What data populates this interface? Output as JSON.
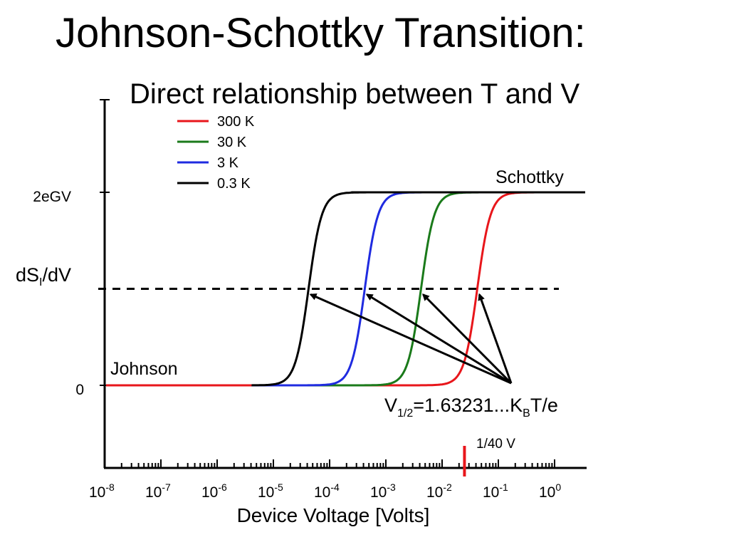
{
  "slide": {
    "title": "Johnson-Schottky Transition:",
    "subtitle": "Direct relationship between T and V"
  },
  "chart_data": {
    "type": "line",
    "xlabel": "Device Voltage [Volts]",
    "ylabel_main": "dS",
    "ylabel_sub": "I",
    "ylabel_tail": "/dV",
    "xscale": "log",
    "xlim": [
      1e-08,
      1.5
    ],
    "x_ticks": [
      {
        "base": "10",
        "exp": "-8",
        "value": 1e-08
      },
      {
        "base": "10",
        "exp": "-7",
        "value": 1e-07
      },
      {
        "base": "10",
        "exp": "-6",
        "value": 1e-06
      },
      {
        "base": "10",
        "exp": "-5",
        "value": 1e-05
      },
      {
        "base": "10",
        "exp": "-4",
        "value": 0.0001
      },
      {
        "base": "10",
        "exp": "-3",
        "value": 0.001
      },
      {
        "base": "10",
        "exp": "-2",
        "value": 0.01
      },
      {
        "base": "10",
        "exp": "-1",
        "value": 0.1
      },
      {
        "base": "10",
        "exp": "0",
        "value": 1
      }
    ],
    "y_ticks": [
      {
        "label": "2eGV",
        "value": 1
      },
      {
        "label": "0",
        "value": 0
      }
    ],
    "half_level": 0.5,
    "series": [
      {
        "name": "300 K",
        "color": "#e8161b",
        "v_half": 0.0422
      },
      {
        "name": "30 K",
        "color": "#1a7a1a",
        "v_half": 0.00422
      },
      {
        "name": "3 K",
        "color": "#1f2be0",
        "v_half": 0.000422
      },
      {
        "name": "0.3 K",
        "color": "#000000",
        "v_half": 4.22e-05
      }
    ],
    "annotations": {
      "johnson": "Johnson",
      "schottky": "Schottky",
      "formula_main": "V",
      "formula_sub": "1/2",
      "formula_mid": "=1.63231...K",
      "formula_sub2": "B",
      "formula_tail": "T/e",
      "marker_label": "1/40 V",
      "marker_value": 0.025
    },
    "legend_position": "top-left",
    "grid": false
  }
}
